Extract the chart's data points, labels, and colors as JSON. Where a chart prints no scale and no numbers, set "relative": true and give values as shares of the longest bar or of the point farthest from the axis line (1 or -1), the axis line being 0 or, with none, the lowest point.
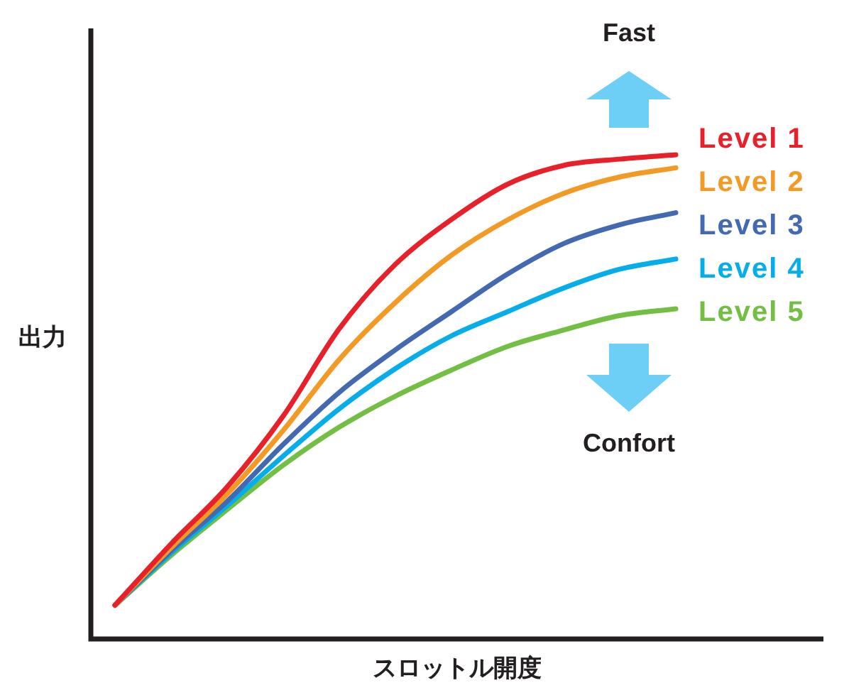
{
  "chart_data": {
    "type": "line",
    "relative": true,
    "xlabel": "スロットル開度",
    "ylabel": "出力",
    "categories": [
      null,
      null,
      null,
      null,
      null,
      null,
      null,
      null,
      null,
      null,
      null
    ],
    "series": [
      {
        "name": "Level 1",
        "color": "#e8202a",
        "values": [
          0.067,
          0.194,
          0.312,
          0.459,
          0.64,
          0.773,
          0.866,
          0.939,
          0.978,
          0.991,
          1
        ]
      },
      {
        "name": "Level 2",
        "color": "#f39a25",
        "values": [
          0.067,
          0.186,
          0.297,
          0.429,
          0.576,
          0.694,
          0.792,
          0.865,
          0.92,
          0.954,
          0.973
        ]
      },
      {
        "name": "Level 3",
        "color": "#4269b1",
        "values": [
          0.067,
          0.18,
          0.282,
          0.4,
          0.508,
          0.596,
          0.675,
          0.753,
          0.816,
          0.855,
          0.88
        ]
      },
      {
        "name": "Level 4",
        "color": "#05aeea",
        "values": [
          0.067,
          0.175,
          0.273,
          0.376,
          0.474,
          0.557,
          0.625,
          0.675,
          0.724,
          0.763,
          0.784
        ]
      },
      {
        "name": "Level 5",
        "color": "#72bf44",
        "values": [
          0.067,
          0.17,
          0.265,
          0.357,
          0.436,
          0.5,
          0.554,
          0.603,
          0.637,
          0.667,
          0.681
        ]
      }
    ],
    "annotations": [
      "Fast",
      "Confort"
    ]
  }
}
